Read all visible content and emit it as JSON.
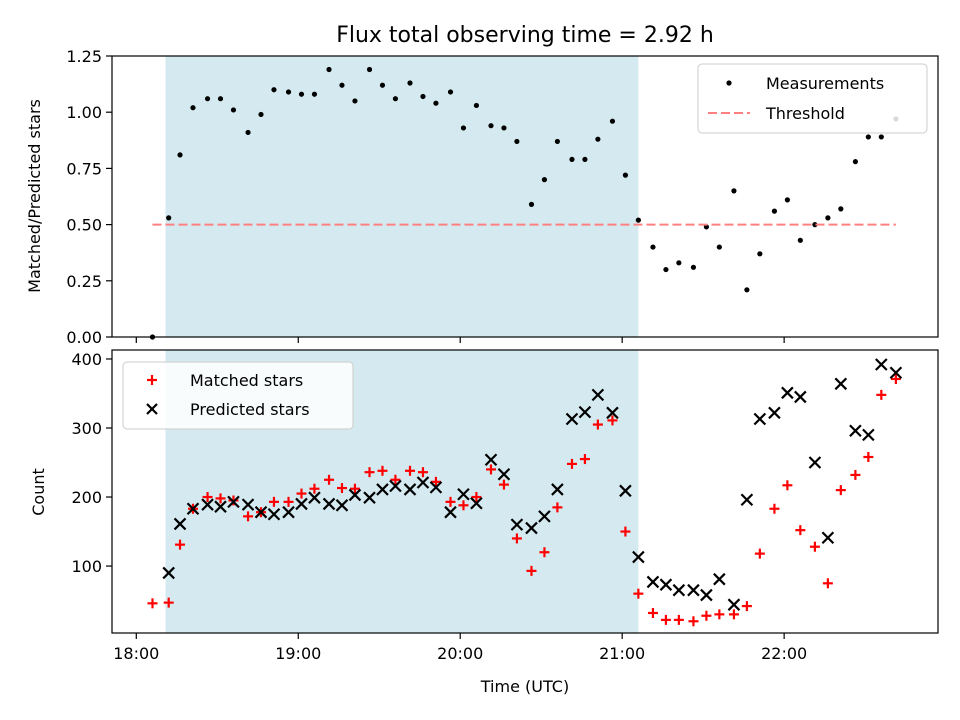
{
  "chart_data": [
    {
      "type": "scatter",
      "title": "Flux total observing time = 2.92 h",
      "ylabel": "Matched/Predicted stars",
      "xlabel": "",
      "x_unit": "hours UTC",
      "xlim": [
        17.85,
        22.95
      ],
      "ylim": [
        0.0,
        1.25
      ],
      "yticks": [
        "0.00",
        "0.25",
        "0.50",
        "0.75",
        "1.00",
        "1.25"
      ],
      "shaded_span": [
        18.18,
        21.1
      ],
      "shade_color": "#d4eaf0",
      "legend": {
        "position": "top-right",
        "entries": [
          "Measurements",
          "Threshold"
        ]
      },
      "series": [
        {
          "name": "Measurements",
          "marker": "dot",
          "color": "#000000",
          "x": [
            18.1,
            18.2,
            18.27,
            18.35,
            18.44,
            18.52,
            18.6,
            18.69,
            18.77,
            18.85,
            18.94,
            19.02,
            19.1,
            19.19,
            19.27,
            19.35,
            19.44,
            19.52,
            19.6,
            19.69,
            19.77,
            19.85,
            19.94,
            20.02,
            20.1,
            20.19,
            20.27,
            20.35,
            20.44,
            20.52,
            20.6,
            20.69,
            20.77,
            20.85,
            20.94,
            21.02,
            21.1,
            21.19,
            21.27,
            21.35,
            21.44,
            21.52,
            21.6,
            21.69,
            21.77,
            21.85,
            21.94,
            22.02,
            22.1,
            22.19,
            22.27,
            22.35,
            22.44,
            22.52,
            22.6,
            22.69
          ],
          "y": [
            0.0,
            0.53,
            0.81,
            1.02,
            1.06,
            1.06,
            1.01,
            0.91,
            0.99,
            1.1,
            1.09,
            1.08,
            1.08,
            1.19,
            1.12,
            1.05,
            1.19,
            1.12,
            1.06,
            1.13,
            1.07,
            1.04,
            1.09,
            0.93,
            1.03,
            0.94,
            0.93,
            0.87,
            0.59,
            0.7,
            0.87,
            0.79,
            0.79,
            0.88,
            0.96,
            0.72,
            0.52,
            0.4,
            0.3,
            0.33,
            0.31,
            0.49,
            0.4,
            0.65,
            0.21,
            0.37,
            0.56,
            0.61,
            0.43,
            0.5,
            0.53,
            0.57,
            0.78,
            0.89,
            0.89,
            0.97
          ]
        },
        {
          "name": "Threshold",
          "style": "dashed",
          "color": "#ff8080",
          "x": [
            18.1,
            22.69
          ],
          "y": [
            0.5,
            0.5
          ]
        }
      ]
    },
    {
      "type": "scatter",
      "title": "",
      "ylabel": "Count",
      "xlabel": "Time (UTC)",
      "x_unit": "hours UTC",
      "xlim": [
        17.85,
        22.95
      ],
      "ylim": [
        3,
        413
      ],
      "yticks": [
        "100",
        "200",
        "300",
        "400"
      ],
      "xticks": [
        {
          "value": 18.0,
          "label": "18:00"
        },
        {
          "value": 19.0,
          "label": "19:00"
        },
        {
          "value": 20.0,
          "label": "20:00"
        },
        {
          "value": 21.0,
          "label": "21:00"
        },
        {
          "value": 22.0,
          "label": "22:00"
        }
      ],
      "shaded_span": [
        18.18,
        21.1
      ],
      "shade_color": "#d4eaf0",
      "legend": {
        "position": "top-left",
        "entries": [
          "Matched stars",
          "Predicted stars"
        ]
      },
      "series": [
        {
          "name": "Matched stars",
          "marker": "plus",
          "color": "#ff0000",
          "x": [
            18.1,
            18.2,
            18.27,
            18.35,
            18.44,
            18.52,
            18.6,
            18.69,
            18.77,
            18.85,
            18.94,
            19.02,
            19.1,
            19.19,
            19.27,
            19.35,
            19.44,
            19.52,
            19.6,
            19.69,
            19.77,
            19.85,
            19.94,
            20.02,
            20.1,
            20.19,
            20.27,
            20.35,
            20.44,
            20.52,
            20.6,
            20.69,
            20.77,
            20.85,
            20.94,
            21.02,
            21.1,
            21.19,
            21.27,
            21.35,
            21.44,
            21.52,
            21.6,
            21.69,
            21.77,
            21.85,
            21.94,
            22.02,
            22.1,
            22.19,
            22.27,
            22.35,
            22.44,
            22.52,
            22.6,
            22.69
          ],
          "y": [
            46,
            47,
            131,
            183,
            200,
            198,
            195,
            172,
            178,
            193,
            193,
            205,
            212,
            225,
            213,
            212,
            236,
            238,
            225,
            238,
            236,
            222,
            193,
            188,
            200,
            240,
            218,
            140,
            93,
            120,
            185,
            248,
            255,
            305,
            311,
            150,
            60,
            32,
            22,
            22,
            20,
            28,
            30,
            30,
            42,
            118,
            183,
            217,
            152,
            128,
            75,
            210,
            232,
            258,
            348,
            371
          ]
        },
        {
          "name": "Predicted stars",
          "marker": "x",
          "color": "#000000",
          "x": [
            18.1,
            18.2,
            18.27,
            18.35,
            18.44,
            18.52,
            18.6,
            18.69,
            18.77,
            18.85,
            18.94,
            19.02,
            19.1,
            19.19,
            19.27,
            19.35,
            19.44,
            19.52,
            19.6,
            19.69,
            19.77,
            19.85,
            19.94,
            20.02,
            20.1,
            20.19,
            20.27,
            20.35,
            20.44,
            20.52,
            20.6,
            20.69,
            20.77,
            20.85,
            20.94,
            21.02,
            21.1,
            21.19,
            21.27,
            21.35,
            21.44,
            21.52,
            21.6,
            21.69,
            21.77,
            21.85,
            21.94,
            22.02,
            22.1,
            22.19,
            22.27,
            22.35,
            22.44,
            22.52,
            22.6,
            22.69
          ],
          "y": [
            null,
            90,
            161,
            183,
            189,
            186,
            193,
            189,
            178,
            175,
            178,
            190,
            199,
            190,
            188,
            203,
            199,
            211,
            216,
            211,
            221,
            214,
            178,
            204,
            191,
            254,
            233,
            160,
            155,
            172,
            211,
            313,
            323,
            348,
            322,
            209,
            113,
            77,
            73,
            65,
            65,
            58,
            81,
            44,
            196,
            313,
            322,
            351,
            345,
            250,
            141,
            364,
            296,
            290,
            392,
            380
          ]
        }
      ]
    }
  ]
}
